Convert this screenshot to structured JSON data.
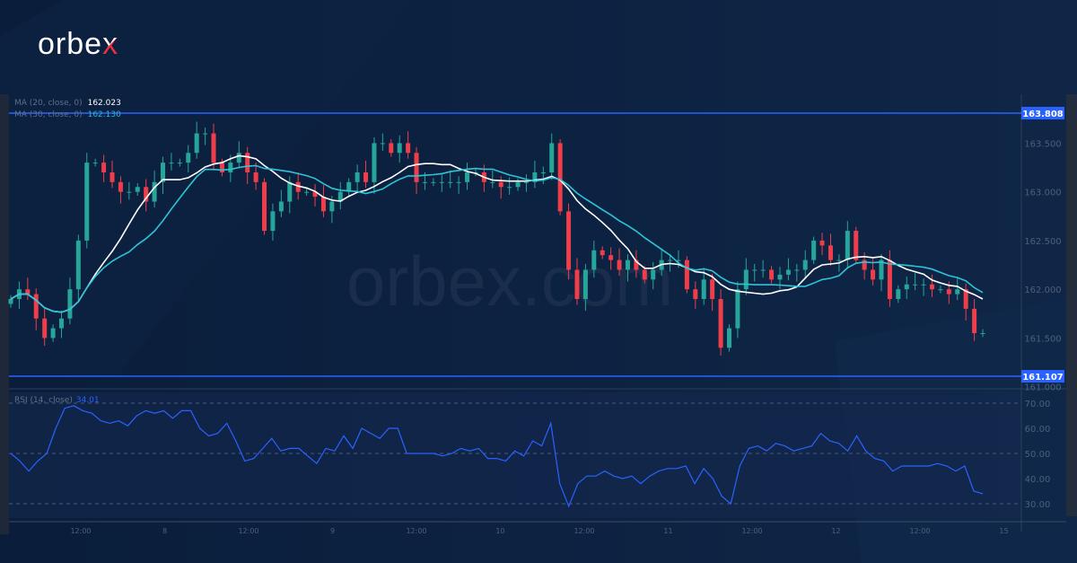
{
  "brand": {
    "logo": "orbex",
    "watermark": "orbex.com"
  },
  "legend": {
    "ma20_label": "MA (20, close, 0)",
    "ma20_value": "162.023",
    "ma30_label": "MA (30, close, 0)",
    "ma30_value": "162.130",
    "rsi_label": "RSI (14, close)",
    "rsi_value": "34.01"
  },
  "colors": {
    "up": "#26a69a",
    "down": "#ef3e4a",
    "ma20": "#ffffff",
    "ma30": "#2ec4d6",
    "level": "#2a62ff",
    "rsi": "#2a62ff",
    "bg": "#0a1e3b"
  },
  "chart_data": [
    {
      "type": "candlestick",
      "price_ylim": [
        161.0,
        163.9
      ],
      "y_ticks": [
        "163.500",
        "163.000",
        "162.500",
        "162.000",
        "161.500",
        "161.000"
      ],
      "x_ticks": [
        "12:00",
        "8",
        "12:00",
        "9",
        "12:00",
        "10",
        "12:00",
        "11",
        "12:00",
        "12",
        "12:00",
        "15"
      ],
      "levels": [
        {
          "value": 163.808,
          "label": "163.808"
        },
        {
          "value": 161.107,
          "label": "161.107"
        }
      ],
      "close": [
        161.9,
        162.0,
        161.95,
        161.7,
        161.5,
        161.6,
        161.7,
        162.0,
        162.5,
        163.3,
        163.3,
        163.2,
        163.1,
        163.0,
        163.0,
        163.05,
        162.9,
        163.1,
        163.3,
        163.3,
        163.3,
        163.4,
        163.6,
        163.6,
        163.3,
        163.2,
        163.3,
        163.4,
        163.2,
        163.1,
        162.6,
        162.8,
        162.9,
        163.1,
        163.0,
        163.0,
        162.95,
        162.8,
        162.9,
        163.0,
        163.1,
        163.2,
        163.1,
        163.5,
        163.5,
        163.4,
        163.5,
        163.4,
        163.1,
        163.1,
        163.1,
        163.1,
        163.1,
        163.1,
        163.2,
        163.2,
        163.1,
        163.1,
        163.05,
        163.05,
        163.1,
        163.1,
        163.2,
        163.2,
        163.5,
        162.8,
        162.2,
        161.9,
        162.2,
        162.4,
        162.35,
        162.3,
        162.2,
        162.3,
        162.2,
        162.1,
        162.2,
        162.3,
        162.3,
        162.3,
        162.0,
        161.9,
        162.1,
        161.9,
        161.4,
        161.6,
        162.0,
        162.2,
        162.2,
        162.2,
        162.1,
        162.15,
        162.2,
        162.2,
        162.3,
        162.5,
        162.45,
        162.3,
        162.3,
        162.6,
        162.3,
        162.2,
        162.1,
        162.3,
        161.9,
        162.0,
        162.05,
        162.05,
        162.05,
        162.0,
        162.0,
        161.95,
        162.0,
        161.8,
        161.55,
        161.55
      ],
      "ma_periods": [
        20,
        30
      ]
    },
    {
      "type": "line",
      "name": "RSI (14, close)",
      "ylim": [
        25,
        75
      ],
      "y_ticks": [
        "70.00",
        "60.00",
        "50.00",
        "40.00",
        "30.00"
      ],
      "bands": [
        30,
        50,
        70
      ],
      "values": [
        50,
        47,
        43,
        47,
        50,
        60,
        68,
        69,
        67,
        66,
        63,
        62,
        63,
        61,
        65,
        67,
        66,
        67,
        64,
        67,
        67,
        60,
        57,
        58,
        62,
        55,
        47,
        48,
        52,
        56,
        51,
        52,
        52,
        49,
        46,
        52,
        51,
        57,
        52,
        60,
        58,
        56,
        60,
        60,
        50,
        50,
        50,
        50,
        49,
        50,
        52,
        51,
        52,
        48,
        48,
        47,
        51,
        49,
        55,
        53,
        62,
        38,
        29,
        38,
        41,
        41,
        43,
        41,
        40,
        41,
        38,
        41,
        43,
        44,
        44,
        45,
        38,
        44,
        40,
        33,
        30,
        45,
        52,
        53,
        51,
        54,
        53,
        51,
        52,
        53,
        58,
        55,
        54,
        51,
        57,
        51,
        48,
        47,
        43,
        45,
        45,
        45,
        45,
        46,
        45,
        43,
        45,
        35,
        34
      ]
    }
  ]
}
